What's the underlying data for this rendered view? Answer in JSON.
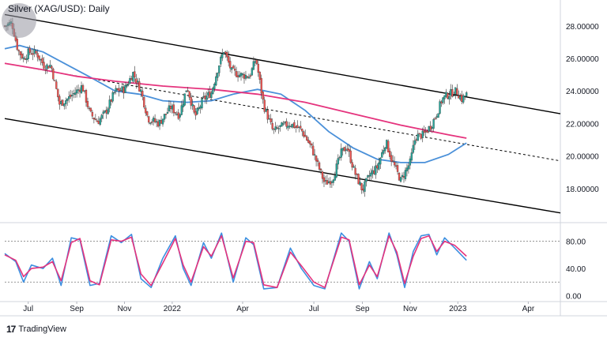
{
  "title": "Silver (XAG/USD): Daily",
  "branding": "TradingView",
  "logo_text": "",
  "colors": {
    "candle_up": "#26a69a",
    "candle_down": "#ef5350",
    "ma_fast": "#4a90d9",
    "ma_slow": "#e5337d",
    "channel": "#000000",
    "stoch_k": "#3d8fe0",
    "stoch_d": "#e5337d"
  },
  "chart_data": [
    {
      "type": "candlestick",
      "x_tick_labels": [
        "Jul",
        "Sep",
        "Nov",
        "2022",
        "Apr",
        "Jul",
        "Sep",
        "Nov",
        "2023",
        "Apr"
      ],
      "x_tick_dates": [
        "2021-07-01",
        "2021-09-01",
        "2021-11-01",
        "2022-01-01",
        "2022-04-01",
        "2022-07-01",
        "2022-09-01",
        "2022-11-01",
        "2023-01-01",
        "2023-04-01"
      ],
      "x_range": [
        "2021-06-01",
        "2023-05-12"
      ],
      "y_tick_labels": [
        "28.00000",
        "26.00000",
        "24.00000",
        "22.00000",
        "20.00000",
        "18.00000"
      ],
      "ylim": [
        16.0,
        29.4
      ],
      "grid": false,
      "close_series": {
        "name": "",
        "points": [
          [
            "2021-06-01",
            28.0
          ],
          [
            "2021-06-10",
            28.2
          ],
          [
            "2021-06-18",
            26.5
          ],
          [
            "2021-06-25",
            26.0
          ],
          [
            "2021-07-02",
            26.4
          ],
          [
            "2021-07-12",
            26.3
          ],
          [
            "2021-07-22",
            25.5
          ],
          [
            "2021-07-30",
            25.6
          ],
          [
            "2021-08-10",
            23.2
          ],
          [
            "2021-08-20",
            23.5
          ],
          [
            "2021-09-01",
            24.0
          ],
          [
            "2021-09-08",
            24.3
          ],
          [
            "2021-09-18",
            22.6
          ],
          [
            "2021-09-28",
            22.1
          ],
          [
            "2021-10-08",
            22.7
          ],
          [
            "2021-10-20",
            24.0
          ],
          [
            "2021-11-01",
            24.1
          ],
          [
            "2021-11-12",
            25.1
          ],
          [
            "2021-11-22",
            24.0
          ],
          [
            "2021-12-01",
            22.3
          ],
          [
            "2021-12-15",
            22.0
          ],
          [
            "2021-12-30",
            23.0
          ],
          [
            "2022-01-10",
            22.5
          ],
          [
            "2022-01-20",
            24.3
          ],
          [
            "2022-01-30",
            22.4
          ],
          [
            "2022-02-10",
            23.5
          ],
          [
            "2022-02-20",
            23.9
          ],
          [
            "2022-03-01",
            25.5
          ],
          [
            "2022-03-08",
            26.5
          ],
          [
            "2022-03-18",
            25.2
          ],
          [
            "2022-03-28",
            25.0
          ],
          [
            "2022-04-10",
            24.9
          ],
          [
            "2022-04-18",
            26.0
          ],
          [
            "2022-04-28",
            23.1
          ],
          [
            "2022-05-10",
            21.5
          ],
          [
            "2022-05-20",
            21.8
          ],
          [
            "2022-06-01",
            22.0
          ],
          [
            "2022-06-15",
            21.6
          ],
          [
            "2022-06-28",
            20.5
          ],
          [
            "2022-07-08",
            19.2
          ],
          [
            "2022-07-15",
            18.3
          ],
          [
            "2022-07-25",
            18.6
          ],
          [
            "2022-08-05",
            20.2
          ],
          [
            "2022-08-12",
            20.6
          ],
          [
            "2022-08-22",
            19.0
          ],
          [
            "2022-09-01",
            17.9
          ],
          [
            "2022-09-10",
            18.8
          ],
          [
            "2022-09-20",
            19.3
          ],
          [
            "2022-10-01",
            20.9
          ],
          [
            "2022-10-08",
            19.8
          ],
          [
            "2022-10-20",
            18.5
          ],
          [
            "2022-11-01",
            19.6
          ],
          [
            "2022-11-08",
            21.2
          ],
          [
            "2022-11-18",
            21.3
          ],
          [
            "2022-11-28",
            21.9
          ],
          [
            "2022-12-05",
            22.6
          ],
          [
            "2022-12-12",
            23.5
          ],
          [
            "2022-12-20",
            23.8
          ],
          [
            "2022-12-30",
            24.0
          ],
          [
            "2023-01-06",
            23.5
          ],
          [
            "2023-01-12",
            23.8
          ]
        ]
      },
      "moving_averages": [
        {
          "name": "",
          "color": "#4a90d9",
          "points": [
            [
              "2021-06-01",
              26.6
            ],
            [
              "2021-06-20",
              26.8
            ],
            [
              "2021-07-20",
              26.4
            ],
            [
              "2021-08-20",
              25.6
            ],
            [
              "2021-09-20",
              24.8
            ],
            [
              "2021-10-20",
              24.0
            ],
            [
              "2021-11-20",
              23.8
            ],
            [
              "2021-12-20",
              23.4
            ],
            [
              "2022-01-20",
              23.3
            ],
            [
              "2022-02-20",
              23.4
            ],
            [
              "2022-03-20",
              23.8
            ],
            [
              "2022-04-20",
              24.1
            ],
            [
              "2022-05-20",
              23.8
            ],
            [
              "2022-06-20",
              22.8
            ],
            [
              "2022-07-20",
              21.5
            ],
            [
              "2022-08-20",
              20.5
            ],
            [
              "2022-09-20",
              19.8
            ],
            [
              "2022-10-20",
              19.6
            ],
            [
              "2022-11-20",
              19.6
            ],
            [
              "2022-12-20",
              20.1
            ],
            [
              "2023-01-12",
              20.8
            ]
          ]
        },
        {
          "name": "",
          "color": "#e5337d",
          "points": [
            [
              "2021-06-01",
              25.7
            ],
            [
              "2021-07-20",
              25.3
            ],
            [
              "2021-09-01",
              24.9
            ],
            [
              "2021-10-20",
              24.6
            ],
            [
              "2021-12-20",
              24.3
            ],
            [
              "2022-02-20",
              24.1
            ],
            [
              "2022-04-20",
              23.8
            ],
            [
              "2022-06-20",
              23.3
            ],
            [
              "2022-08-20",
              22.6
            ],
            [
              "2022-10-20",
              21.9
            ],
            [
              "2022-11-20",
              21.6
            ],
            [
              "2022-12-20",
              21.3
            ],
            [
              "2023-01-12",
              21.1
            ]
          ]
        }
      ],
      "channel_lines": [
        {
          "style": "solid",
          "points": [
            [
              "2021-06-01",
              28.7
            ],
            [
              "2023-05-12",
              22.6
            ]
          ]
        },
        {
          "style": "dashed",
          "points": [
            [
              "2021-06-01",
              25.7
            ],
            [
              "2023-05-12",
              19.7
            ]
          ]
        },
        {
          "style": "solid",
          "points": [
            [
              "2021-06-01",
              22.3
            ],
            [
              "2023-05-12",
              16.5
            ]
          ]
        }
      ]
    },
    {
      "type": "line",
      "indicator": "stochastic",
      "y_tick_labels": [
        "80.00",
        "40.00",
        "0.00"
      ],
      "ylim": [
        -4,
        105
      ],
      "reference_levels": [
        80,
        20
      ],
      "series": [
        {
          "name": "",
          "color": "#3d8fe0",
          "points": [
            [
              "2021-06-01",
              62
            ],
            [
              "2021-06-15",
              50
            ],
            [
              "2021-06-25",
              20
            ],
            [
              "2021-07-05",
              45
            ],
            [
              "2021-07-20",
              40
            ],
            [
              "2021-08-01",
              55
            ],
            [
              "2021-08-12",
              15
            ],
            [
              "2021-08-25",
              85
            ],
            [
              "2021-09-05",
              82
            ],
            [
              "2021-09-18",
              15
            ],
            [
              "2021-09-30",
              18
            ],
            [
              "2021-10-15",
              88
            ],
            [
              "2021-10-28",
              78
            ],
            [
              "2021-11-10",
              90
            ],
            [
              "2021-11-22",
              25
            ],
            [
              "2021-12-05",
              12
            ],
            [
              "2021-12-20",
              55
            ],
            [
              "2022-01-05",
              88
            ],
            [
              "2022-01-15",
              40
            ],
            [
              "2022-01-25",
              15
            ],
            [
              "2022-02-10",
              78
            ],
            [
              "2022-02-20",
              55
            ],
            [
              "2022-03-05",
              92
            ],
            [
              "2022-03-20",
              20
            ],
            [
              "2022-04-05",
              85
            ],
            [
              "2022-04-15",
              75
            ],
            [
              "2022-04-28",
              10
            ],
            [
              "2022-05-15",
              12
            ],
            [
              "2022-06-01",
              70
            ],
            [
              "2022-06-15",
              40
            ],
            [
              "2022-07-01",
              15
            ],
            [
              "2022-07-15",
              10
            ],
            [
              "2022-08-05",
              92
            ],
            [
              "2022-08-15",
              80
            ],
            [
              "2022-08-28",
              10
            ],
            [
              "2022-09-10",
              50
            ],
            [
              "2022-09-20",
              25
            ],
            [
              "2022-10-05",
              92
            ],
            [
              "2022-10-15",
              60
            ],
            [
              "2022-10-25",
              12
            ],
            [
              "2022-11-05",
              65
            ],
            [
              "2022-11-15",
              88
            ],
            [
              "2022-11-25",
              90
            ],
            [
              "2022-12-05",
              60
            ],
            [
              "2022-12-15",
              85
            ],
            [
              "2022-12-28",
              70
            ],
            [
              "2023-01-12",
              52
            ]
          ]
        },
        {
          "name": "",
          "color": "#e5337d",
          "points": [
            [
              "2021-06-01",
              60
            ],
            [
              "2021-06-15",
              52
            ],
            [
              "2021-06-25",
              28
            ],
            [
              "2021-07-05",
              40
            ],
            [
              "2021-07-20",
              42
            ],
            [
              "2021-08-01",
              50
            ],
            [
              "2021-08-12",
              22
            ],
            [
              "2021-08-25",
              78
            ],
            [
              "2021-09-05",
              84
            ],
            [
              "2021-09-18",
              22
            ],
            [
              "2021-09-30",
              16
            ],
            [
              "2021-10-15",
              82
            ],
            [
              "2021-10-28",
              80
            ],
            [
              "2021-11-10",
              86
            ],
            [
              "2021-11-22",
              32
            ],
            [
              "2021-12-05",
              15
            ],
            [
              "2021-12-20",
              48
            ],
            [
              "2022-01-05",
              84
            ],
            [
              "2022-01-15",
              45
            ],
            [
              "2022-01-25",
              20
            ],
            [
              "2022-02-10",
              72
            ],
            [
              "2022-02-20",
              58
            ],
            [
              "2022-03-05",
              88
            ],
            [
              "2022-03-20",
              26
            ],
            [
              "2022-04-05",
              80
            ],
            [
              "2022-04-15",
              78
            ],
            [
              "2022-04-28",
              16
            ],
            [
              "2022-05-15",
              12
            ],
            [
              "2022-06-01",
              64
            ],
            [
              "2022-06-15",
              44
            ],
            [
              "2022-07-01",
              20
            ],
            [
              "2022-07-15",
              12
            ],
            [
              "2022-08-05",
              86
            ],
            [
              "2022-08-15",
              82
            ],
            [
              "2022-08-28",
              16
            ],
            [
              "2022-09-10",
              45
            ],
            [
              "2022-09-20",
              28
            ],
            [
              "2022-10-05",
              88
            ],
            [
              "2022-10-15",
              64
            ],
            [
              "2022-10-25",
              18
            ],
            [
              "2022-11-05",
              58
            ],
            [
              "2022-11-15",
              84
            ],
            [
              "2022-11-25",
              88
            ],
            [
              "2022-12-05",
              65
            ],
            [
              "2022-12-15",
              80
            ],
            [
              "2022-12-28",
              74
            ],
            [
              "2023-01-12",
              58
            ]
          ]
        }
      ]
    }
  ]
}
